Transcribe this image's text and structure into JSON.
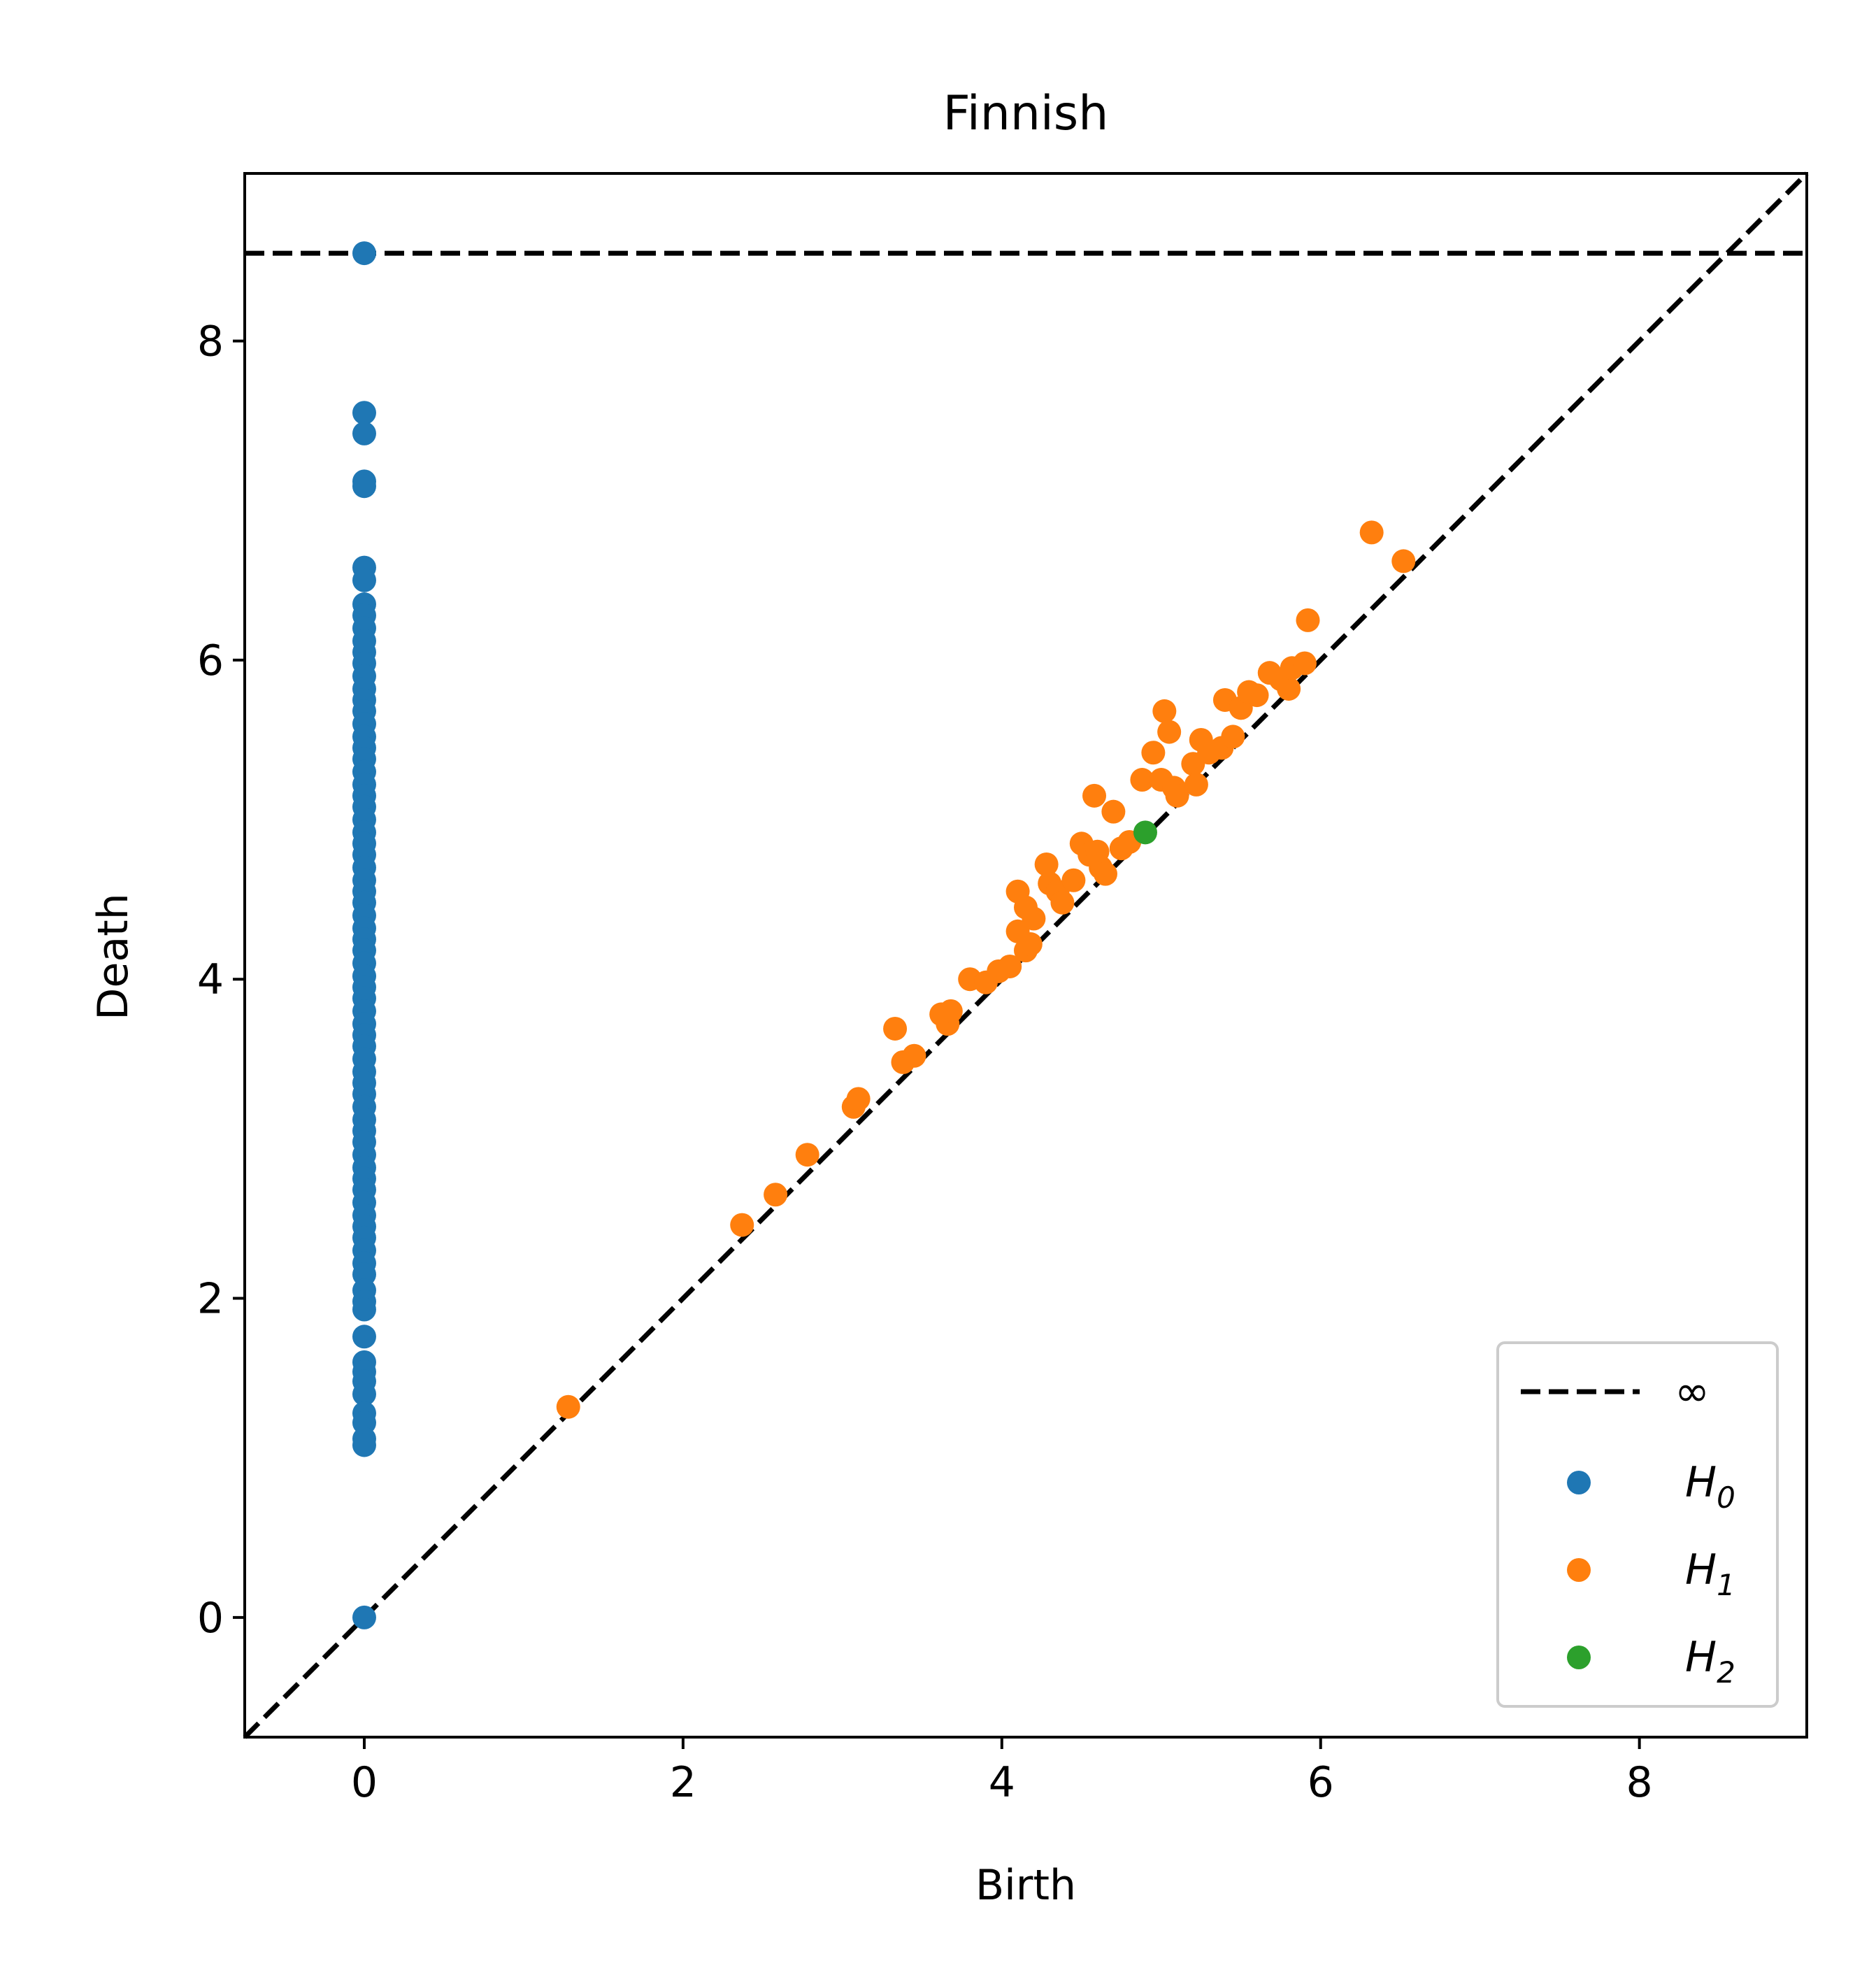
{
  "chart_data": {
    "type": "scatter",
    "title": "Finnish",
    "xlabel": "Birth",
    "ylabel": "Death",
    "xlim": [
      -0.75,
      9.05
    ],
    "ylim": [
      -0.75,
      9.05
    ],
    "xticks": [
      0,
      2,
      4,
      6,
      8
    ],
    "yticks": [
      0,
      2,
      4,
      6,
      8
    ],
    "grid": false,
    "legend_position": "lower-right",
    "infinity_level": 8.55,
    "reference_lines": [
      {
        "kind": "horizontal",
        "label": "∞",
        "value": 8.55,
        "style": "dashed",
        "color": "#000000"
      },
      {
        "kind": "diagonal",
        "style": "dashed",
        "color": "#000000"
      }
    ],
    "series": [
      {
        "name": "H",
        "subscript": "0",
        "color": "#1f77b4",
        "points": [
          [
            0,
            0
          ],
          [
            0,
            8.55
          ],
          [
            0,
            7.55
          ],
          [
            0,
            7.42
          ],
          [
            0,
            7.12
          ],
          [
            0,
            7.09
          ],
          [
            0,
            6.58
          ],
          [
            0,
            6.5
          ],
          [
            0,
            6.35
          ],
          [
            0,
            6.28
          ],
          [
            0,
            6.2
          ],
          [
            0,
            6.12
          ],
          [
            0,
            6.05
          ],
          [
            0,
            5.98
          ],
          [
            0,
            5.9
          ],
          [
            0,
            5.82
          ],
          [
            0,
            5.75
          ],
          [
            0,
            5.68
          ],
          [
            0,
            5.6
          ],
          [
            0,
            5.52
          ],
          [
            0,
            5.45
          ],
          [
            0,
            5.38
          ],
          [
            0,
            5.3
          ],
          [
            0,
            5.22
          ],
          [
            0,
            5.15
          ],
          [
            0,
            5.08
          ],
          [
            0,
            5.0
          ],
          [
            0,
            4.92
          ],
          [
            0,
            4.85
          ],
          [
            0,
            4.78
          ],
          [
            0,
            4.7
          ],
          [
            0,
            4.62
          ],
          [
            0,
            4.55
          ],
          [
            0,
            4.48
          ],
          [
            0,
            4.4
          ],
          [
            0,
            4.32
          ],
          [
            0,
            4.25
          ],
          [
            0,
            4.18
          ],
          [
            0,
            4.1
          ],
          [
            0,
            4.02
          ],
          [
            0,
            3.95
          ],
          [
            0,
            3.88
          ],
          [
            0,
            3.8
          ],
          [
            0,
            3.72
          ],
          [
            0,
            3.65
          ],
          [
            0,
            3.58
          ],
          [
            0,
            3.5
          ],
          [
            0,
            3.42
          ],
          [
            0,
            3.35
          ],
          [
            0,
            3.28
          ],
          [
            0,
            3.2
          ],
          [
            0,
            3.12
          ],
          [
            0,
            3.05
          ],
          [
            0,
            2.98
          ],
          [
            0,
            2.9
          ],
          [
            0,
            2.82
          ],
          [
            0,
            2.75
          ],
          [
            0,
            2.68
          ],
          [
            0,
            2.6
          ],
          [
            0,
            2.52
          ],
          [
            0,
            2.45
          ],
          [
            0,
            2.38
          ],
          [
            0,
            2.3
          ],
          [
            0,
            2.22
          ],
          [
            0,
            2.15
          ],
          [
            0,
            2.05
          ],
          [
            0,
            1.98
          ],
          [
            0,
            1.93
          ],
          [
            0,
            1.76
          ],
          [
            0,
            1.6
          ],
          [
            0,
            1.54
          ],
          [
            0,
            1.48
          ],
          [
            0,
            1.4
          ],
          [
            0,
            1.28
          ],
          [
            0,
            1.22
          ],
          [
            0,
            1.12
          ],
          [
            0,
            1.08
          ]
        ]
      },
      {
        "name": "H",
        "subscript": "1",
        "color": "#ff7f0e",
        "points": [
          [
            1.28,
            1.32
          ],
          [
            2.37,
            2.46
          ],
          [
            2.58,
            2.65
          ],
          [
            2.78,
            2.9
          ],
          [
            3.07,
            3.2
          ],
          [
            3.1,
            3.25
          ],
          [
            3.33,
            3.69
          ],
          [
            3.38,
            3.48
          ],
          [
            3.45,
            3.52
          ],
          [
            3.62,
            3.78
          ],
          [
            3.66,
            3.72
          ],
          [
            3.68,
            3.8
          ],
          [
            3.8,
            4.0
          ],
          [
            3.9,
            3.98
          ],
          [
            3.98,
            4.05
          ],
          [
            4.05,
            4.08
          ],
          [
            4.1,
            4.3
          ],
          [
            4.15,
            4.18
          ],
          [
            4.18,
            4.22
          ],
          [
            4.1,
            4.55
          ],
          [
            4.15,
            4.45
          ],
          [
            4.2,
            4.38
          ],
          [
            4.28,
            4.72
          ],
          [
            4.3,
            4.6
          ],
          [
            4.35,
            4.55
          ],
          [
            4.38,
            4.48
          ],
          [
            4.45,
            4.62
          ],
          [
            4.5,
            4.85
          ],
          [
            4.55,
            4.78
          ],
          [
            4.58,
            5.15
          ],
          [
            4.6,
            4.8
          ],
          [
            4.62,
            4.7
          ],
          [
            4.65,
            4.66
          ],
          [
            4.7,
            5.05
          ],
          [
            4.75,
            4.82
          ],
          [
            4.8,
            4.86
          ],
          [
            4.88,
            5.25
          ],
          [
            4.95,
            5.42
          ],
          [
            5.0,
            5.25
          ],
          [
            5.02,
            5.68
          ],
          [
            5.05,
            5.55
          ],
          [
            5.08,
            5.2
          ],
          [
            5.1,
            5.15
          ],
          [
            5.2,
            5.35
          ],
          [
            5.22,
            5.22
          ],
          [
            5.25,
            5.5
          ],
          [
            5.3,
            5.42
          ],
          [
            5.38,
            5.45
          ],
          [
            5.4,
            5.75
          ],
          [
            5.45,
            5.52
          ],
          [
            5.5,
            5.7
          ],
          [
            5.55,
            5.8
          ],
          [
            5.6,
            5.78
          ],
          [
            5.68,
            5.92
          ],
          [
            5.75,
            5.88
          ],
          [
            5.8,
            5.82
          ],
          [
            5.82,
            5.95
          ],
          [
            5.9,
            5.98
          ],
          [
            5.92,
            6.25
          ],
          [
            6.32,
            6.8
          ],
          [
            6.52,
            6.62
          ]
        ]
      },
      {
        "name": "H",
        "subscript": "2",
        "color": "#2ca02c",
        "points": [
          [
            4.9,
            4.92
          ]
        ]
      }
    ]
  }
}
